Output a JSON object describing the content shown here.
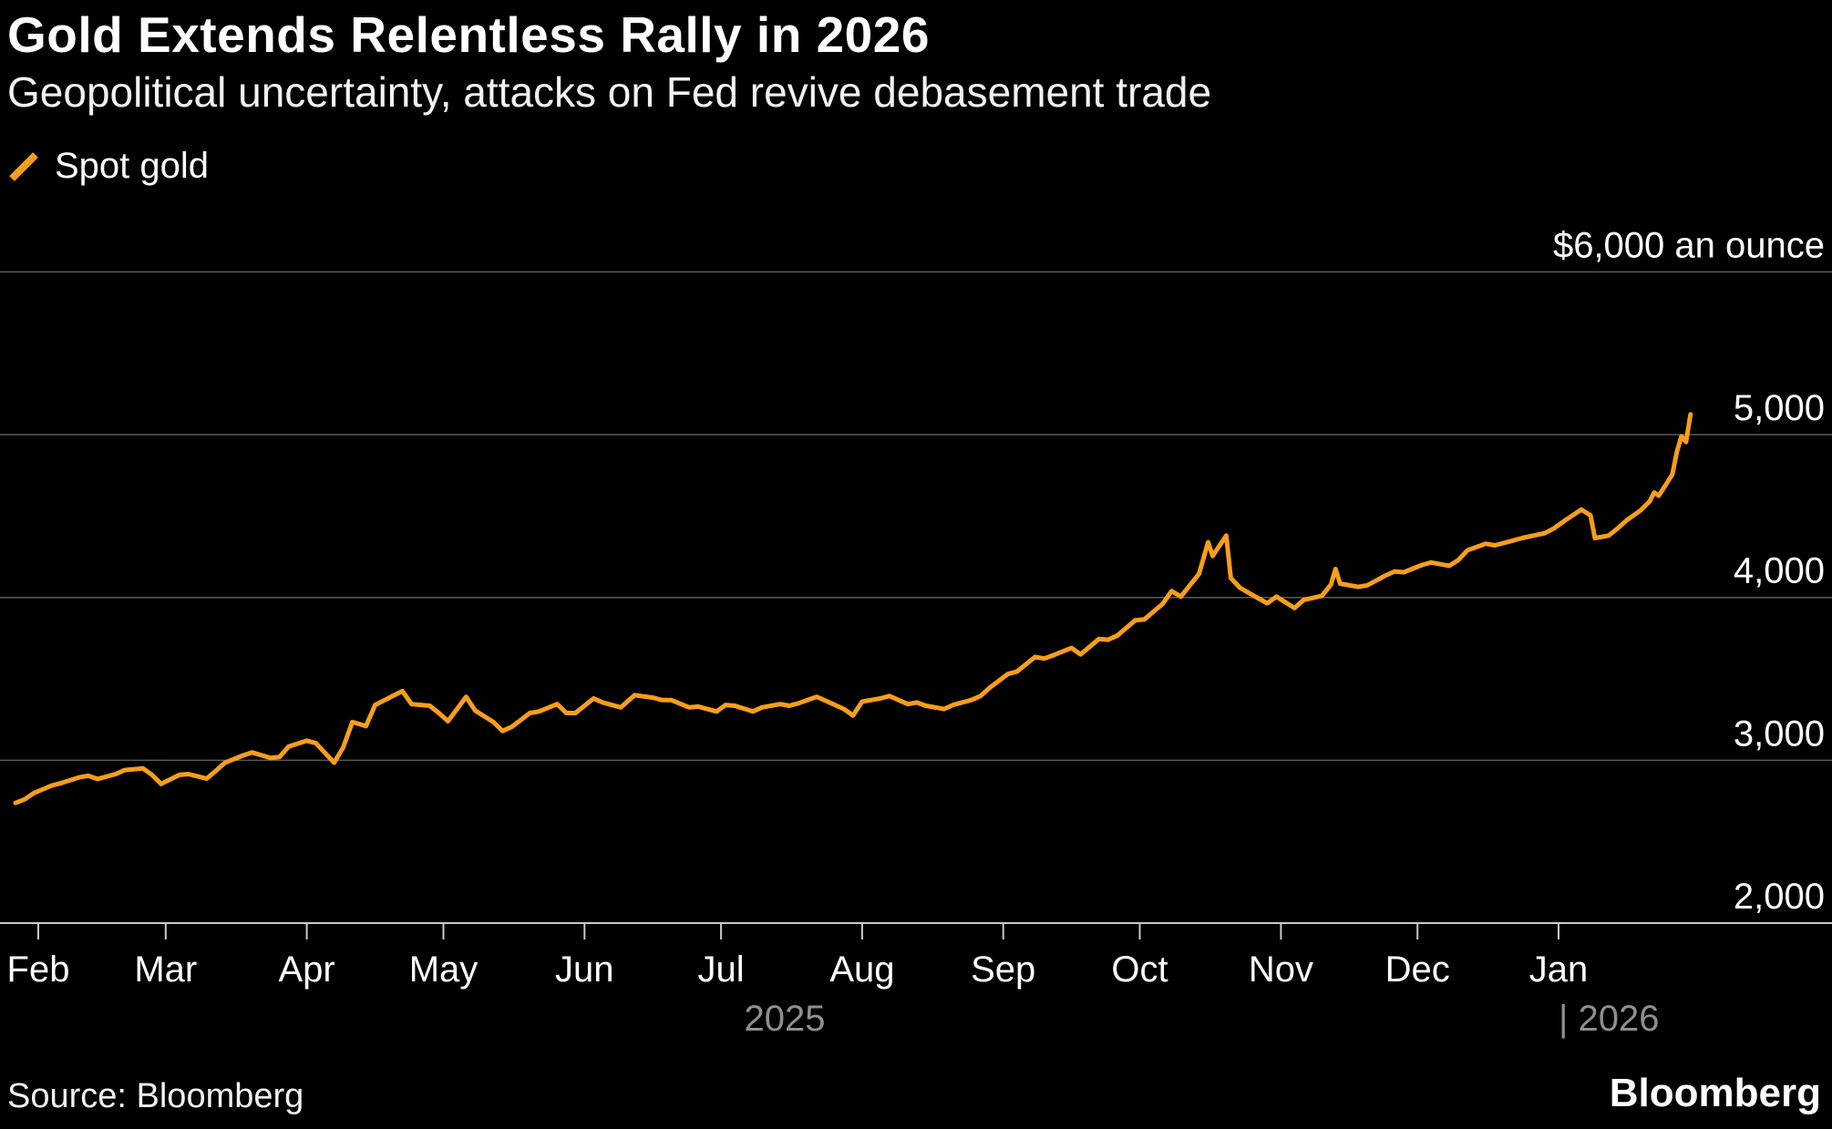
{
  "header": {
    "title": "Gold Extends Relentless Rally in 2026",
    "subtitle": "Geopolitical uncertainty, attacks on Fed revive debasement trade"
  },
  "legend": {
    "label": "Spot gold",
    "swatch_color": "#F79E1B"
  },
  "footer": {
    "source": "Source: Bloomberg",
    "brand": "Bloomberg"
  },
  "colors": {
    "background": "#000000",
    "line": "#F79E1B",
    "grid": "#5a5a5a",
    "axis": "#c9c9c9",
    "tick_label": "#ffffff",
    "year_label": "#8f8f8f",
    "y_label": "#ffffff"
  },
  "chart_data": {
    "type": "line",
    "title": "Gold Extends Relentless Rally in 2026",
    "subtitle": "Geopolitical uncertainty, attacks on Fed revive debasement trade",
    "ylabel": "$ an ounce",
    "ylim": [
      2000,
      6000
    ],
    "grid": "horizontal",
    "legend_position": "top-left",
    "y_ticks": [
      {
        "value": 6000,
        "label": "$6,000 an ounce"
      },
      {
        "value": 5000,
        "label": "5,000"
      },
      {
        "value": 4000,
        "label": "4,000"
      },
      {
        "value": 3000,
        "label": "3,000"
      },
      {
        "value": 2000,
        "label": "2,000"
      }
    ],
    "x_ticks": [
      {
        "label": "Feb",
        "date": "2025-02-01"
      },
      {
        "label": "Mar",
        "date": "2025-03-01"
      },
      {
        "label": "Apr",
        "date": "2025-04-01"
      },
      {
        "label": "May",
        "date": "2025-05-01"
      },
      {
        "label": "Jun",
        "date": "2025-06-01"
      },
      {
        "label": "Jul",
        "date": "2025-07-01"
      },
      {
        "label": "Aug",
        "date": "2025-08-01"
      },
      {
        "label": "Sep",
        "date": "2025-09-01"
      },
      {
        "label": "Oct",
        "date": "2025-10-01"
      },
      {
        "label": "Nov",
        "date": "2025-11-01"
      },
      {
        "label": "Dec",
        "date": "2025-12-01"
      },
      {
        "label": "Jan",
        "date": "2026-01-01"
      }
    ],
    "year_labels": [
      {
        "label": "2025",
        "align": "center",
        "date": "2025-07-15"
      },
      {
        "label": "| 2026",
        "align": "left",
        "date": "2026-01-01"
      }
    ],
    "series": [
      {
        "name": "Spot gold",
        "color": "#F79E1B",
        "points": [
          [
            "2025-01-27",
            2738
          ],
          [
            "2025-01-29",
            2760
          ],
          [
            "2025-01-31",
            2798
          ],
          [
            "2025-02-04",
            2845
          ],
          [
            "2025-02-06",
            2860
          ],
          [
            "2025-02-10",
            2895
          ],
          [
            "2025-02-12",
            2905
          ],
          [
            "2025-02-14",
            2885
          ],
          [
            "2025-02-18",
            2915
          ],
          [
            "2025-02-20",
            2940
          ],
          [
            "2025-02-24",
            2950
          ],
          [
            "2025-02-26",
            2910
          ],
          [
            "2025-02-28",
            2855
          ],
          [
            "2025-03-04",
            2910
          ],
          [
            "2025-03-06",
            2915
          ],
          [
            "2025-03-10",
            2888
          ],
          [
            "2025-03-12",
            2935
          ],
          [
            "2025-03-14",
            2985
          ],
          [
            "2025-03-18",
            3030
          ],
          [
            "2025-03-20",
            3048
          ],
          [
            "2025-03-24",
            3015
          ],
          [
            "2025-03-26",
            3020
          ],
          [
            "2025-03-28",
            3085
          ],
          [
            "2025-04-01",
            3120
          ],
          [
            "2025-04-03",
            3105
          ],
          [
            "2025-04-07",
            2985
          ],
          [
            "2025-04-09",
            3080
          ],
          [
            "2025-04-11",
            3235
          ],
          [
            "2025-04-14",
            3210
          ],
          [
            "2025-04-16",
            3340
          ],
          [
            "2025-04-22",
            3425
          ],
          [
            "2025-04-24",
            3345
          ],
          [
            "2025-04-28",
            3335
          ],
          [
            "2025-04-30",
            3290
          ],
          [
            "2025-05-02",
            3240
          ],
          [
            "2025-05-06",
            3390
          ],
          [
            "2025-05-08",
            3305
          ],
          [
            "2025-05-12",
            3235
          ],
          [
            "2025-05-14",
            3180
          ],
          [
            "2025-05-16",
            3205
          ],
          [
            "2025-05-20",
            3290
          ],
          [
            "2025-05-22",
            3300
          ],
          [
            "2025-05-26",
            3345
          ],
          [
            "2025-05-28",
            3290
          ],
          [
            "2025-05-30",
            3290
          ],
          [
            "2025-06-03",
            3380
          ],
          [
            "2025-06-05",
            3355
          ],
          [
            "2025-06-09",
            3325
          ],
          [
            "2025-06-12",
            3400
          ],
          [
            "2025-06-16",
            3385
          ],
          [
            "2025-06-18",
            3370
          ],
          [
            "2025-06-20",
            3370
          ],
          [
            "2025-06-24",
            3325
          ],
          [
            "2025-06-26",
            3330
          ],
          [
            "2025-06-30",
            3300
          ],
          [
            "2025-07-02",
            3340
          ],
          [
            "2025-07-04",
            3335
          ],
          [
            "2025-07-08",
            3300
          ],
          [
            "2025-07-10",
            3325
          ],
          [
            "2025-07-14",
            3345
          ],
          [
            "2025-07-16",
            3335
          ],
          [
            "2025-07-18",
            3350
          ],
          [
            "2025-07-22",
            3390
          ],
          [
            "2025-07-24",
            3365
          ],
          [
            "2025-07-28",
            3315
          ],
          [
            "2025-07-30",
            3275
          ],
          [
            "2025-08-01",
            3360
          ],
          [
            "2025-08-05",
            3380
          ],
          [
            "2025-08-07",
            3395
          ],
          [
            "2025-08-11",
            3345
          ],
          [
            "2025-08-13",
            3355
          ],
          [
            "2025-08-15",
            3335
          ],
          [
            "2025-08-19",
            3315
          ],
          [
            "2025-08-21",
            3340
          ],
          [
            "2025-08-25",
            3370
          ],
          [
            "2025-08-27",
            3395
          ],
          [
            "2025-08-29",
            3445
          ],
          [
            "2025-09-02",
            3530
          ],
          [
            "2025-09-04",
            3545
          ],
          [
            "2025-09-08",
            3635
          ],
          [
            "2025-09-10",
            3625
          ],
          [
            "2025-09-12",
            3645
          ],
          [
            "2025-09-16",
            3690
          ],
          [
            "2025-09-18",
            3650
          ],
          [
            "2025-09-22",
            3745
          ],
          [
            "2025-09-24",
            3740
          ],
          [
            "2025-09-26",
            3765
          ],
          [
            "2025-09-30",
            3860
          ],
          [
            "2025-10-02",
            3865
          ],
          [
            "2025-10-06",
            3960
          ],
          [
            "2025-10-08",
            4040
          ],
          [
            "2025-10-10",
            4005
          ],
          [
            "2025-10-14",
            4145
          ],
          [
            "2025-10-16",
            4340
          ],
          [
            "2025-10-17",
            4255
          ],
          [
            "2025-10-20",
            4380
          ],
          [
            "2025-10-21",
            4120
          ],
          [
            "2025-10-23",
            4060
          ],
          [
            "2025-10-27",
            3995
          ],
          [
            "2025-10-29",
            3965
          ],
          [
            "2025-10-31",
            4005
          ],
          [
            "2025-11-04",
            3935
          ],
          [
            "2025-11-06",
            3985
          ],
          [
            "2025-11-10",
            4010
          ],
          [
            "2025-11-12",
            4080
          ],
          [
            "2025-11-13",
            4175
          ],
          [
            "2025-11-14",
            4085
          ],
          [
            "2025-11-18",
            4065
          ],
          [
            "2025-11-20",
            4075
          ],
          [
            "2025-11-24",
            4135
          ],
          [
            "2025-11-26",
            4160
          ],
          [
            "2025-11-28",
            4155
          ],
          [
            "2025-12-02",
            4200
          ],
          [
            "2025-12-04",
            4215
          ],
          [
            "2025-12-08",
            4195
          ],
          [
            "2025-12-10",
            4230
          ],
          [
            "2025-12-12",
            4290
          ],
          [
            "2025-12-16",
            4330
          ],
          [
            "2025-12-18",
            4320
          ],
          [
            "2025-12-22",
            4350
          ],
          [
            "2025-12-24",
            4365
          ],
          [
            "2025-12-29",
            4395
          ],
          [
            "2025-12-31",
            4425
          ],
          [
            "2026-01-02",
            4465
          ],
          [
            "2026-01-06",
            4540
          ],
          [
            "2026-01-08",
            4505
          ],
          [
            "2026-01-09",
            4365
          ],
          [
            "2026-01-12",
            4380
          ],
          [
            "2026-01-14",
            4425
          ],
          [
            "2026-01-16",
            4475
          ],
          [
            "2026-01-19",
            4535
          ],
          [
            "2026-01-21",
            4590
          ],
          [
            "2026-01-22",
            4645
          ],
          [
            "2026-01-23",
            4625
          ],
          [
            "2026-01-26",
            4755
          ],
          [
            "2026-01-27",
            4895
          ],
          [
            "2026-01-28",
            4990
          ],
          [
            "2026-01-29",
            4955
          ],
          [
            "2026-01-30",
            5125
          ]
        ]
      }
    ]
  }
}
